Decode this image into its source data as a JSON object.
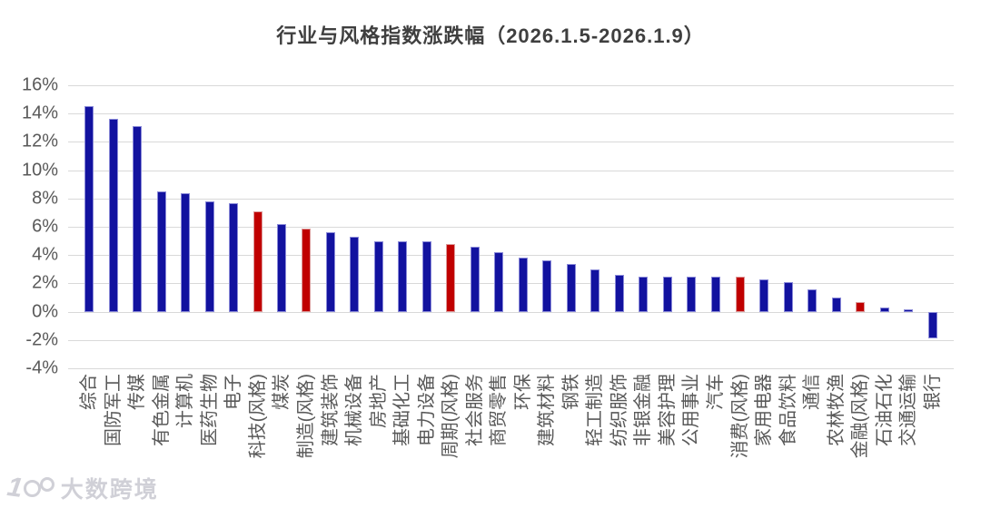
{
  "colors": {
    "industry_bar": "#12129f",
    "style_bar": "#c00000",
    "gridline": "#d9d9d9",
    "axis_label": "#595959",
    "title_text": "#3f3f3f",
    "background": "#ffffff"
  },
  "watermark": {
    "logo_text": "100",
    "brand": "大数跨境"
  },
  "chart_data": {
    "type": "bar",
    "title": "行业与风格指数涨跌幅（2026.1.5-2026.1.9）",
    "xlabel": "",
    "ylabel": "",
    "ylim": [
      -4,
      16
    ],
    "ytick_step": 2,
    "ytick_labels": [
      "16%",
      "14%",
      "12%",
      "10%",
      "8%",
      "6%",
      "4%",
      "2%",
      "0%",
      "-2%",
      "-4%"
    ],
    "grid": true,
    "legend": "none",
    "value_unit": "%",
    "bars": [
      {
        "label": "综合",
        "value": 14.5,
        "kind": "industry"
      },
      {
        "label": "国防军工",
        "value": 13.6,
        "kind": "industry"
      },
      {
        "label": "传媒",
        "value": 13.1,
        "kind": "industry"
      },
      {
        "label": "有色金属",
        "value": 8.5,
        "kind": "industry"
      },
      {
        "label": "计算机",
        "value": 8.4,
        "kind": "industry"
      },
      {
        "label": "医药生物",
        "value": 7.8,
        "kind": "industry"
      },
      {
        "label": "电子",
        "value": 7.7,
        "kind": "industry"
      },
      {
        "label": "科技(风格)",
        "value": 7.1,
        "kind": "style"
      },
      {
        "label": "煤炭",
        "value": 6.2,
        "kind": "industry"
      },
      {
        "label": "制造(风格)",
        "value": 5.9,
        "kind": "style"
      },
      {
        "label": "建筑装饰",
        "value": 5.6,
        "kind": "industry"
      },
      {
        "label": "机械设备",
        "value": 5.3,
        "kind": "industry"
      },
      {
        "label": "房地产",
        "value": 5.0,
        "kind": "industry"
      },
      {
        "label": "基础化工",
        "value": 5.0,
        "kind": "industry"
      },
      {
        "label": "电力设备",
        "value": 5.0,
        "kind": "industry"
      },
      {
        "label": "周期(风格)",
        "value": 4.8,
        "kind": "style"
      },
      {
        "label": "社会服务",
        "value": 4.6,
        "kind": "industry"
      },
      {
        "label": "商贸零售",
        "value": 4.2,
        "kind": "industry"
      },
      {
        "label": "环保",
        "value": 3.8,
        "kind": "industry"
      },
      {
        "label": "建筑材料",
        "value": 3.6,
        "kind": "industry"
      },
      {
        "label": "钢铁",
        "value": 3.4,
        "kind": "industry"
      },
      {
        "label": "轻工制造",
        "value": 3.0,
        "kind": "industry"
      },
      {
        "label": "纺织服饰",
        "value": 2.6,
        "kind": "industry"
      },
      {
        "label": "非银金融",
        "value": 2.5,
        "kind": "industry"
      },
      {
        "label": "美容护理",
        "value": 2.5,
        "kind": "industry"
      },
      {
        "label": "公用事业",
        "value": 2.5,
        "kind": "industry"
      },
      {
        "label": "汽车",
        "value": 2.5,
        "kind": "industry"
      },
      {
        "label": "消费(风格)",
        "value": 2.5,
        "kind": "style"
      },
      {
        "label": "家用电器",
        "value": 2.3,
        "kind": "industry"
      },
      {
        "label": "食品饮料",
        "value": 2.1,
        "kind": "industry"
      },
      {
        "label": "通信",
        "value": 1.6,
        "kind": "industry"
      },
      {
        "label": "农林牧渔",
        "value": 1.0,
        "kind": "industry"
      },
      {
        "label": "金融(风格)",
        "value": 0.7,
        "kind": "style"
      },
      {
        "label": "石油石化",
        "value": 0.3,
        "kind": "industry"
      },
      {
        "label": "交通运输",
        "value": 0.2,
        "kind": "industry"
      },
      {
        "label": "银行",
        "value": -1.9,
        "kind": "industry"
      }
    ]
  }
}
